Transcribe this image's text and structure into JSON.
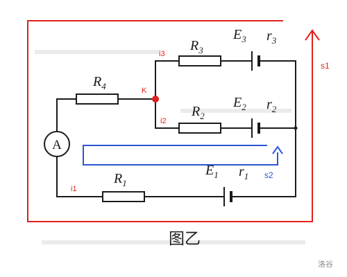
{
  "colors": {
    "loop_s1": "#e0201c",
    "loop_s2": "#2a56d6",
    "node": "#e0201c",
    "ink": "#1a1a1a"
  },
  "icons": {
    "ammeter": "ammeter-icon",
    "battery": "battery-icon",
    "node": "junction-dot-icon"
  },
  "components": {
    "R1": {
      "main": "R",
      "sub": "1"
    },
    "R2": {
      "main": "R",
      "sub": "2"
    },
    "R3": {
      "main": "R",
      "sub": "3"
    },
    "R4": {
      "main": "R",
      "sub": "4"
    },
    "E1": {
      "main": "E",
      "sub": "1"
    },
    "E2": {
      "main": "E",
      "sub": "2"
    },
    "E3": {
      "main": "E",
      "sub": "3"
    },
    "r1": {
      "main": "r",
      "sub": "1"
    },
    "r2": {
      "main": "r",
      "sub": "2"
    },
    "r3": {
      "main": "r",
      "sub": "3"
    },
    "ammeter": "A"
  },
  "annotations": {
    "node": "K",
    "i1": "i1",
    "i2": "i2",
    "i3": "i3",
    "s1": "s1",
    "s2": "s2"
  },
  "caption": "图乙",
  "watermark": "洛谷"
}
